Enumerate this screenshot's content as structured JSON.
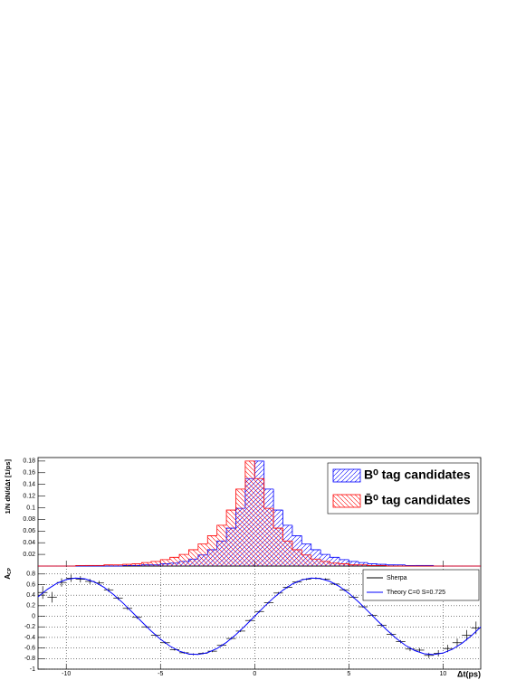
{
  "chart_data": [
    {
      "type": "histogram",
      "ylabel": "1/N dN/dΔt  [1/ps]",
      "bins": [
        -11.5,
        -11,
        -10.5,
        -10,
        -9.5,
        -9,
        -8.5,
        -8,
        -7.5,
        -7,
        -6.5,
        -6,
        -5.5,
        -5,
        -4.5,
        -4,
        -3.5,
        -3,
        -2.5,
        -2,
        -1.5,
        -1,
        -0.5,
        0,
        0.5,
        1,
        1.5,
        2,
        2.5,
        3,
        3.5,
        4,
        4.5,
        5,
        5.5,
        6,
        6.5,
        7,
        7.5,
        8,
        8.5,
        9,
        9.5,
        10,
        10.5,
        11,
        11.5,
        12
      ],
      "series": [
        {
          "name": "B⁰ tag candidates",
          "color": "#0000ff",
          "values": [
            0,
            0,
            0,
            0,
            0,
            0,
            0,
            0,
            0,
            0.001,
            0.001,
            0.002,
            0.002,
            0.004,
            0.005,
            0.008,
            0.012,
            0.019,
            0.028,
            0.043,
            0.065,
            0.099,
            0.15,
            0.18,
            0.132,
            0.096,
            0.07,
            0.052,
            0.038,
            0.028,
            0.02,
            0.015,
            0.011,
            0.008,
            0.006,
            0.004,
            0.003,
            0.002,
            0.002,
            0.001,
            0.001,
            0.001,
            0,
            0,
            0,
            0,
            0
          ]
        },
        {
          "name": "B̄⁰ tag candidates",
          "color": "#ff0000",
          "values": [
            0,
            0,
            0,
            0,
            0.001,
            0.001,
            0.001,
            0.002,
            0.002,
            0.003,
            0.004,
            0.006,
            0.008,
            0.011,
            0.015,
            0.02,
            0.028,
            0.038,
            0.052,
            0.07,
            0.096,
            0.132,
            0.18,
            0.15,
            0.099,
            0.065,
            0.043,
            0.028,
            0.019,
            0.012,
            0.008,
            0.005,
            0.004,
            0.002,
            0.002,
            0.001,
            0.001,
            0,
            0,
            0,
            0,
            0,
            0,
            0,
            0,
            0,
            0
          ]
        }
      ],
      "xlim": [
        -11.5,
        12
      ],
      "ylim": [
        0,
        0.186
      ],
      "yticks": [
        0.02,
        0.04,
        0.06,
        0.08,
        0.1,
        0.12,
        0.14,
        0.16,
        0.18
      ],
      "xticks": [
        -10,
        -5,
        0,
        5,
        10
      ]
    },
    {
      "type": "line",
      "ylabel": {
        "text": "A",
        "sub": "CP"
      },
      "xlabel": "Δt(ps)",
      "series": [
        {
          "name": "Sherpa",
          "color": "#000000",
          "x": [
            -11.25,
            -10.75,
            -10.25,
            -9.75,
            -9.25,
            -8.75,
            -8.25,
            -7.75,
            -7.25,
            -6.75,
            -6.25,
            -5.75,
            -5.25,
            -4.75,
            -4.25,
            -3.75,
            -3.25,
            -2.75,
            -2.25,
            -1.75,
            -1.25,
            -0.75,
            -0.25,
            0.25,
            0.75,
            1.25,
            1.75,
            2.25,
            2.75,
            3.25,
            3.75,
            4.25,
            4.75,
            5.25,
            5.75,
            6.25,
            6.75,
            7.25,
            7.75,
            8.25,
            8.75,
            9.25,
            9.75,
            10.25,
            10.75,
            11.25,
            11.75
          ],
          "values": [
            0.45,
            0.36,
            0.64,
            0.72,
            0.7,
            0.66,
            0.63,
            0.5,
            0.34,
            0.15,
            -0.02,
            -0.2,
            -0.36,
            -0.5,
            -0.63,
            -0.69,
            -0.72,
            -0.7,
            -0.66,
            -0.55,
            -0.42,
            -0.28,
            -0.08,
            0.09,
            0.26,
            0.44,
            0.55,
            0.65,
            0.7,
            0.72,
            0.7,
            0.61,
            0.5,
            0.36,
            0.18,
            0.02,
            -0.17,
            -0.34,
            -0.48,
            -0.62,
            -0.64,
            -0.74,
            -0.7,
            -0.61,
            -0.5,
            -0.36,
            -0.22
          ],
          "errors": [
            0.12,
            0.1,
            0.08,
            0.07,
            0.06,
            0.05,
            0.04,
            0.04,
            0.03,
            0.03,
            0.03,
            0.02,
            0.02,
            0.02,
            0.02,
            0.02,
            0.02,
            0.02,
            0.02,
            0.02,
            0.02,
            0.02,
            0.02,
            0.02,
            0.02,
            0.02,
            0.02,
            0.02,
            0.02,
            0.02,
            0.02,
            0.02,
            0.02,
            0.02,
            0.02,
            0.02,
            0.03,
            0.03,
            0.03,
            0.04,
            0.04,
            0.05,
            0.06,
            0.07,
            0.08,
            0.1,
            0.12
          ]
        },
        {
          "name": "Theory C=0 S=0.725",
          "color": "#0000ff",
          "x": [
            -11.5,
            -11,
            -10.5,
            -10,
            -9.5,
            -9,
            -8.5,
            -8,
            -7.5,
            -7,
            -6.5,
            -6,
            -5.5,
            -5,
            -4.5,
            -4,
            -3.5,
            -3,
            -2.5,
            -2,
            -1.5,
            -1,
            -0.5,
            0,
            0.5,
            1,
            1.5,
            2,
            2.5,
            3,
            3.5,
            4,
            4.5,
            5,
            5.5,
            6,
            6.5,
            7,
            7.5,
            8,
            8.5,
            9,
            9.5,
            10,
            10.5,
            11,
            11.5,
            12
          ],
          "values": [
            0.369,
            0.511,
            0.623,
            0.695,
            0.724,
            0.709,
            0.649,
            0.549,
            0.414,
            0.254,
            0.078,
            -0.102,
            -0.277,
            -0.434,
            -0.564,
            -0.659,
            -0.713,
            -0.723,
            -0.688,
            -0.61,
            -0.494,
            -0.348,
            -0.179,
            0,
            0.179,
            0.348,
            0.494,
            0.61,
            0.688,
            0.723,
            0.713,
            0.659,
            0.564,
            0.434,
            0.277,
            0.102,
            -0.078,
            -0.254,
            -0.414,
            -0.549,
            -0.649,
            -0.709,
            -0.724,
            -0.695,
            -0.623,
            -0.511,
            -0.369,
            -0.203
          ]
        }
      ],
      "xlim": [
        -11.5,
        12
      ],
      "ylim": [
        -1,
        0.95
      ],
      "xticks": [
        -10,
        -5,
        0,
        5,
        10
      ],
      "yticks": [
        -1,
        -0.8,
        -0.6,
        -0.4,
        -0.2,
        0,
        0.2,
        0.4,
        0.6,
        0.8
      ],
      "grid": true
    }
  ]
}
